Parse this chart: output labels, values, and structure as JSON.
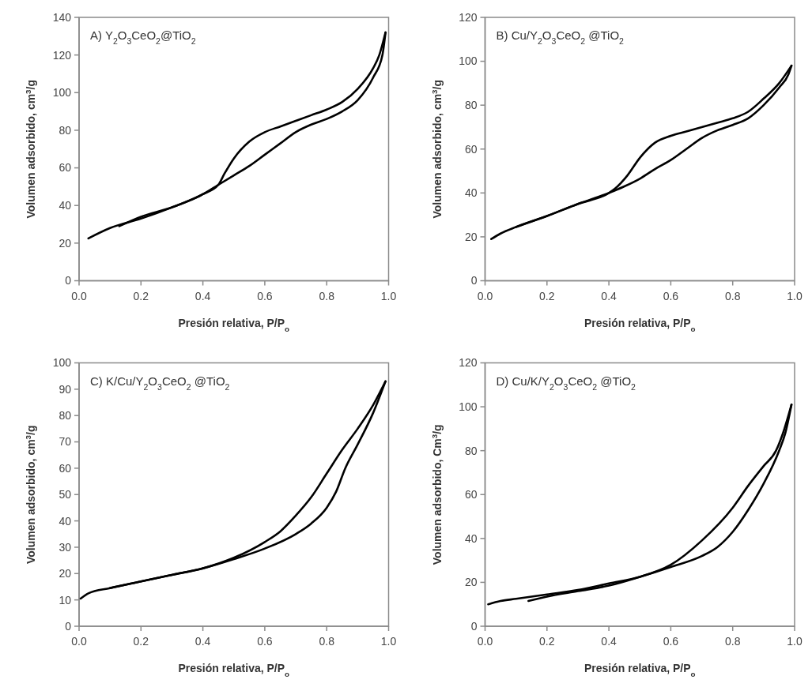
{
  "chart_data": [
    {
      "type": "line",
      "title": "A) Y$_{2}$O$_{3}$CeO$_{2}$@TiO$_{2}$",
      "xlabel": "Presión relativa, P/P$_{o}$",
      "ylabel": "Volumen adsorbido, cm$^{3}$/g",
      "xlim": [
        0,
        1
      ],
      "ylim": [
        0,
        140
      ],
      "xticks": [
        {
          "value": 0,
          "label": "0.0"
        },
        {
          "value": 0.2,
          "label": "0.2"
        },
        {
          "value": 0.4,
          "label": "0.4"
        },
        {
          "value": 0.6,
          "label": "0.6"
        },
        {
          "value": 0.8,
          "label": "0.8"
        },
        {
          "value": 1,
          "label": "1.0"
        }
      ],
      "yticks": [
        0,
        20,
        40,
        60,
        80,
        100,
        120,
        140
      ],
      "series": [
        {
          "color": "#000000",
          "x": [
            0.03,
            0.1,
            0.2,
            0.3,
            0.4,
            0.45,
            0.5,
            0.55,
            0.6,
            0.65,
            0.7,
            0.75,
            0.8,
            0.85,
            0.9,
            0.95,
            0.98,
            0.99
          ],
          "values": [
            22.5,
            28,
            33,
            39,
            46,
            51,
            56,
            61,
            67,
            73,
            79,
            83,
            86,
            90,
            96,
            108,
            120,
            132
          ]
        },
        {
          "color": "#000000",
          "x": [
            0.99,
            0.97,
            0.95,
            0.9,
            0.85,
            0.8,
            0.75,
            0.7,
            0.65,
            0.6,
            0.55,
            0.5,
            0.47,
            0.45,
            0.4,
            0.3,
            0.2,
            0.13
          ],
          "values": [
            132,
            120,
            113,
            102,
            95,
            91,
            88,
            85,
            82,
            79,
            74,
            65,
            57,
            51,
            46,
            39,
            34,
            29
          ]
        }
      ]
    },
    {
      "type": "line",
      "title": "B) Cu/Y$_{2}$O$_{3}$CeO$_{2}$ @TiO$_{2}$",
      "xlabel": "Presión relativa, P/P$_{o}$",
      "ylabel": "Volumen adsorbido, cm$^{3}$/g",
      "xlim": [
        0,
        1
      ],
      "ylim": [
        0,
        120
      ],
      "xticks": [
        {
          "value": 0,
          "label": "0.0"
        },
        {
          "value": 0.2,
          "label": "0.2"
        },
        {
          "value": 0.4,
          "label": "0.4"
        },
        {
          "value": 0.6,
          "label": "0.6"
        },
        {
          "value": 0.8,
          "label": "0.8"
        },
        {
          "value": 1,
          "label": "1.0"
        }
      ],
      "yticks": [
        0,
        20,
        40,
        60,
        80,
        100,
        120
      ],
      "series": [
        {
          "color": "#000000",
          "x": [
            0.02,
            0.05,
            0.1,
            0.2,
            0.3,
            0.4,
            0.45,
            0.5,
            0.55,
            0.6,
            0.65,
            0.7,
            0.75,
            0.8,
            0.85,
            0.9,
            0.95,
            0.98,
            0.99
          ],
          "values": [
            19,
            21.5,
            24.5,
            29.5,
            35,
            40,
            43,
            46.5,
            51,
            55,
            60,
            65,
            68.5,
            71,
            74,
            80,
            88,
            94,
            98
          ]
        },
        {
          "color": "#000000",
          "x": [
            0.99,
            0.95,
            0.9,
            0.85,
            0.8,
            0.75,
            0.7,
            0.65,
            0.6,
            0.55,
            0.5,
            0.46,
            0.42,
            0.4,
            0.3,
            0.2,
            0.1
          ],
          "values": [
            98,
            90,
            83,
            77,
            74,
            72,
            70,
            68,
            66,
            63,
            56,
            48,
            42,
            40,
            35,
            29.5,
            24.5
          ]
        }
      ]
    },
    {
      "type": "line",
      "title": "C) K/Cu/Y$_{2}$O$_{3}$CeO$_{2}$ @TiO$_{2}$",
      "xlabel": "Presión relativa, P/P$_{o}$",
      "ylabel": "Volumen adsorbido, cm$^{3}$/g",
      "xlim": [
        0,
        1
      ],
      "ylim": [
        0,
        100
      ],
      "xticks": [
        {
          "value": 0,
          "label": "0.0"
        },
        {
          "value": 0.2,
          "label": "0.2"
        },
        {
          "value": 0.4,
          "label": "0.4"
        },
        {
          "value": 0.6,
          "label": "0.6"
        },
        {
          "value": 0.8,
          "label": "0.8"
        },
        {
          "value": 1,
          "label": "1.0"
        }
      ],
      "yticks": [
        0,
        10,
        20,
        30,
        40,
        50,
        60,
        70,
        80,
        90,
        100
      ],
      "series": [
        {
          "color": "#000000",
          "x": [
            0.005,
            0.03,
            0.1,
            0.2,
            0.3,
            0.4,
            0.5,
            0.6,
            0.7,
            0.75,
            0.8,
            0.83,
            0.86,
            0.9,
            0.95,
            0.99
          ],
          "values": [
            10.5,
            12.5,
            14.5,
            17,
            19.5,
            22,
            25.5,
            29.5,
            35,
            39,
            45,
            51,
            60,
            69,
            81,
            93
          ]
        },
        {
          "color": "#000000",
          "x": [
            0.99,
            0.95,
            0.9,
            0.85,
            0.8,
            0.75,
            0.7,
            0.65,
            0.6,
            0.5,
            0.4,
            0.3,
            0.2,
            0.1
          ],
          "values": [
            93,
            84,
            75,
            67,
            58,
            49,
            42,
            36,
            32,
            26,
            22,
            19.5,
            17,
            14.5
          ]
        }
      ]
    },
    {
      "type": "line",
      "title": "D) Cu/K/Y$_{2}$O$_{3}$CeO$_{2}$ @TiO$_{2}$",
      "xlabel": "Presión relativa, P/P$_{o}$",
      "ylabel": "Volumen adsorbido, Cm$^{3}$/g",
      "xlim": [
        0,
        1
      ],
      "ylim": [
        0,
        120
      ],
      "xticks": [
        {
          "value": 0,
          "label": "0.0"
        },
        {
          "value": 0.2,
          "label": "0.2"
        },
        {
          "value": 0.4,
          "label": "0.4"
        },
        {
          "value": 0.6,
          "label": "0.6"
        },
        {
          "value": 0.8,
          "label": "0.8"
        },
        {
          "value": 1,
          "label": "1.0"
        }
      ],
      "yticks": [
        0,
        20,
        40,
        60,
        80,
        100,
        120
      ],
      "series": [
        {
          "color": "#000000",
          "x": [
            0.01,
            0.05,
            0.1,
            0.2,
            0.3,
            0.4,
            0.5,
            0.6,
            0.7,
            0.8,
            0.85,
            0.9,
            0.94,
            0.96,
            0.99
          ],
          "values": [
            10,
            11.5,
            12.5,
            14.5,
            16.5,
            19.5,
            22.5,
            28,
            39,
            54,
            64,
            73,
            80,
            87,
            101
          ]
        },
        {
          "color": "#000000",
          "x": [
            0.99,
            0.97,
            0.95,
            0.9,
            0.85,
            0.8,
            0.75,
            0.7,
            0.6,
            0.5,
            0.4,
            0.3,
            0.2,
            0.14
          ],
          "values": [
            101,
            88,
            80,
            65,
            53,
            43,
            36,
            32,
            27,
            22.5,
            18.5,
            16,
            13.5,
            11.5
          ]
        }
      ]
    }
  ]
}
